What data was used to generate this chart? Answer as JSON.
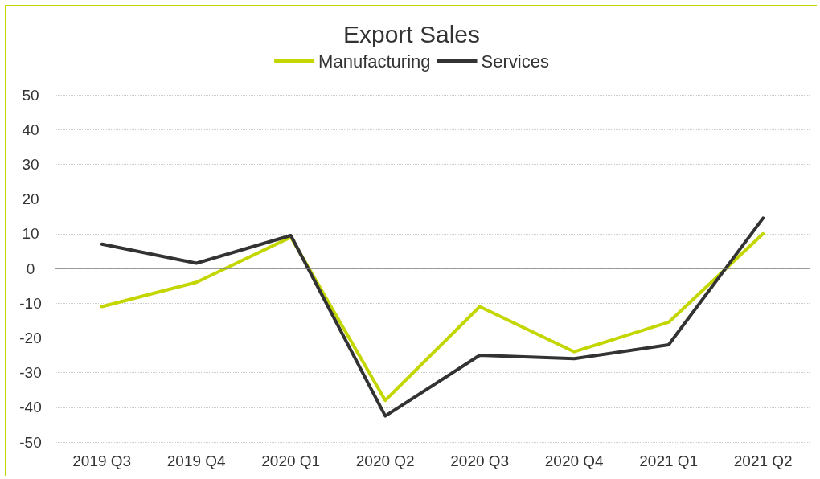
{
  "chart_data": {
    "type": "line",
    "title": "Export Sales",
    "categories": [
      "2019 Q3",
      "2019 Q4",
      "2020 Q1",
      "2020 Q2",
      "2020 Q3",
      "2020 Q4",
      "2021 Q1",
      "2021 Q2"
    ],
    "series": [
      {
        "name": "Manufacturing",
        "color": "#c3d600",
        "values": [
          -11,
          -4,
          9,
          -38,
          -11,
          -24,
          -15.5,
          10
        ]
      },
      {
        "name": "Services",
        "color": "#333333",
        "values": [
          7,
          1.5,
          9.5,
          -42.5,
          -25,
          -26,
          -22,
          14.5
        ]
      }
    ],
    "ylim": [
      -50,
      50
    ],
    "yticks": [
      -50,
      -40,
      -30,
      -20,
      -10,
      0,
      10,
      20,
      30,
      40,
      50
    ],
    "ref_lines": [
      {
        "axis": "y",
        "value": 0,
        "color": "#808080",
        "line_style": "solid"
      }
    ],
    "grid": "y",
    "legend": "top",
    "marker": "none",
    "line_style": "solid"
  }
}
